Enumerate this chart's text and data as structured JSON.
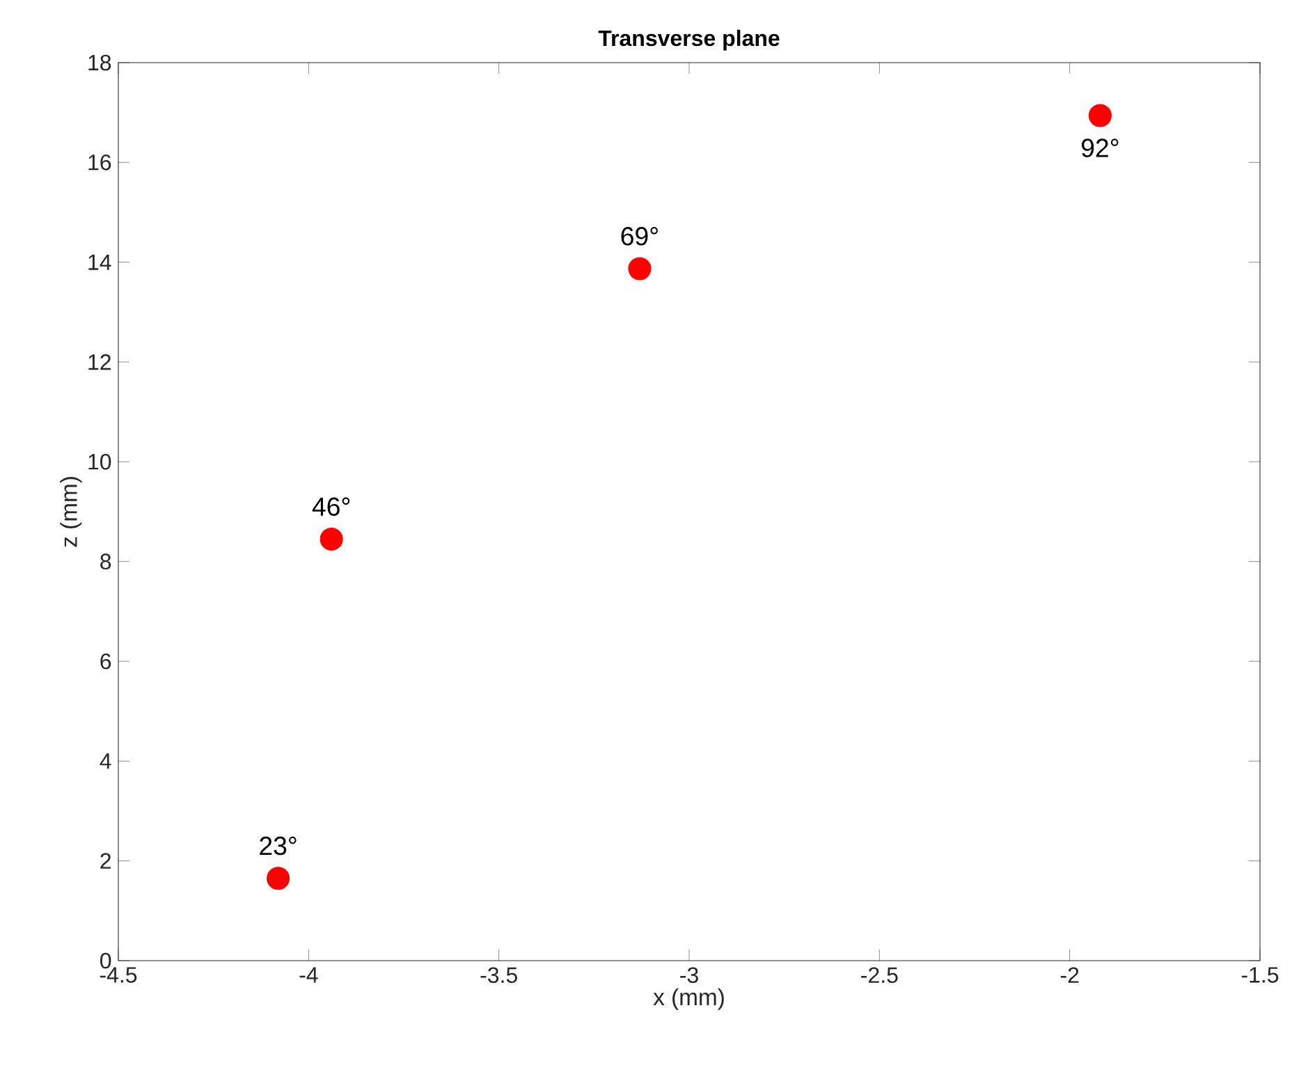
{
  "chart_data": {
    "type": "scatter",
    "title": "Transverse plane",
    "xlabel": "x (mm)",
    "ylabel": "z (mm)",
    "x": [
      -4.08,
      -3.94,
      -3.13,
      -1.92
    ],
    "series": [
      {
        "color": "#ff0000",
        "values": [
          1.65,
          8.45,
          13.87,
          16.94
        ]
      }
    ],
    "marker": "circle",
    "grid": false,
    "xlim": [
      -4.5,
      -1.5
    ],
    "ylim": [
      0,
      18
    ],
    "xticks": [
      -4.5,
      -4,
      -3.5,
      -3,
      -2.5,
      -2,
      -1.5
    ],
    "yticks": [
      0,
      2,
      4,
      6,
      8,
      10,
      12,
      14,
      16,
      18
    ],
    "annotations": [
      {
        "text": "23°",
        "x": -4.08,
        "y": 1.65
      },
      {
        "text": "46°",
        "x": -3.94,
        "y": 8.45
      },
      {
        "text": "69°",
        "x": -3.13,
        "y": 13.87
      },
      {
        "text": "92°",
        "x": -1.92,
        "y": 16.94
      }
    ]
  }
}
